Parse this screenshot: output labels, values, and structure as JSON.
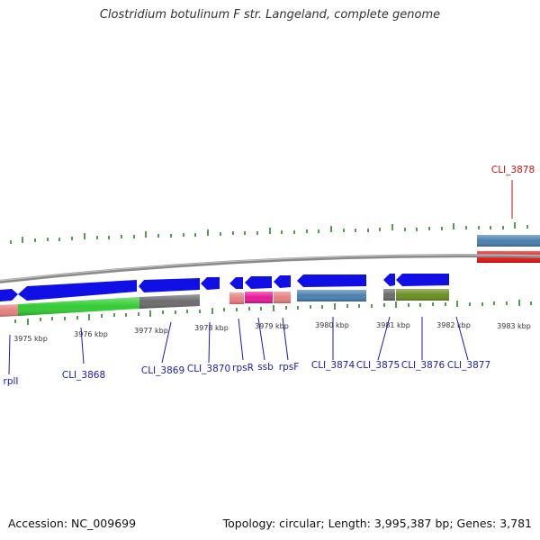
{
  "title": "Clostridium botulinum F str. Langeland, complete genome",
  "footer": {
    "accession": "Accession: NC_009699",
    "genome_info": "Topology: circular; Length: 3,995,387 bp; Genes: 3,781"
  },
  "colors": {
    "backbone": "#8a8a8a",
    "tick": "#1a7a1a",
    "cds_arrow": "#1010e6",
    "gene_label": "#1a1ab4",
    "highlight_label": "#cc1111",
    "highlight_gene": "#ee1111",
    "steelblue": "#4a7fb0",
    "green": "#33cc33",
    "gray": "#6b6b6b",
    "salmon": "#e88080",
    "magenta": "#e6199a",
    "olive": "#6b8e23"
  },
  "scale_labels": [
    "3975 kbp",
    "3976 kbp",
    "3977 kbp",
    "3978 kbp",
    "3979 kbp",
    "3980 kbp",
    "3981 kbp",
    "3982 kbp",
    "3983 kbp"
  ],
  "gene_labels": {
    "rplI": "rplI",
    "cli3868": "CLI_3868",
    "cli3869": "CLI_3869",
    "cli3870": "CLI_3870",
    "rpsR": "rpsR",
    "ssb": "ssb",
    "rpsF": "rpsF",
    "cli3874": "CLI_3874",
    "cli3875": "CLI_3875",
    "cli3876": "CLI_3876",
    "cli3877": "CLI_3877",
    "cli3878": "CLI_3878"
  }
}
